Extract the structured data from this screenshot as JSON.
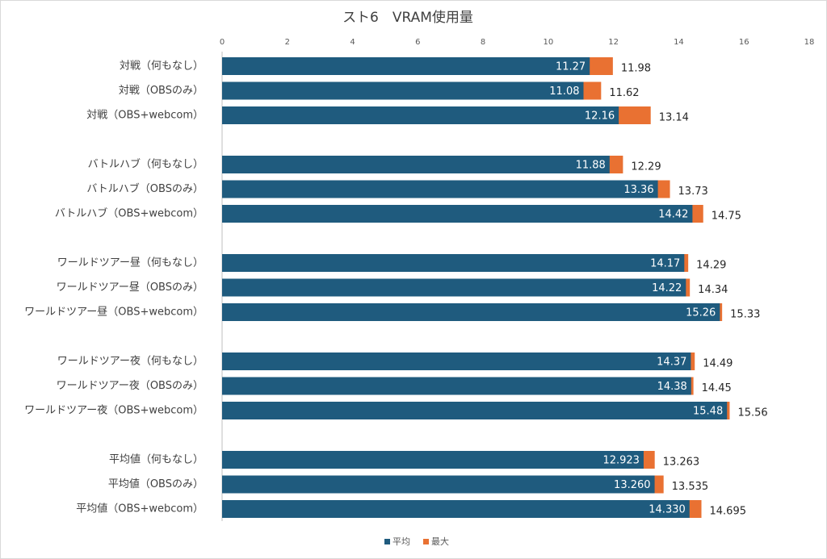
{
  "chart_data": {
    "type": "bar",
    "orientation": "horizontal",
    "title": "スト6　VRAM使用量",
    "categories": [
      "対戦（何もなし）",
      "対戦（OBSのみ）",
      "対戦（OBS+webcom）",
      "バトルハブ（何もなし）",
      "バトルハブ（OBSのみ）",
      "バトルハブ（OBS+webcom）",
      "ワールドツアー昼（何もなし）",
      "ワールドツアー昼（OBSのみ）",
      "ワールドツアー昼（OBS+webcom）",
      "ワールドツアー夜（何もなし）",
      "ワールドツアー夜（OBSのみ）",
      "ワールドツアー夜（OBS+webcom）",
      "平均値（何もなし）",
      "平均値（OBSのみ）",
      "平均値（OBS+webcom）"
    ],
    "series": [
      {
        "name": "平均",
        "color": "#1f5b7e",
        "values": [
          11.27,
          11.08,
          12.16,
          11.88,
          13.36,
          14.42,
          14.17,
          14.22,
          15.26,
          14.37,
          14.38,
          15.48,
          12.923,
          13.26,
          14.33
        ],
        "value_labels": [
          "11.27",
          "11.08",
          "12.16",
          "11.88",
          "13.36",
          "14.42",
          "14.17",
          "14.22",
          "15.26",
          "14.37",
          "14.38",
          "15.48",
          "12.923",
          "13.260",
          "14.330"
        ]
      },
      {
        "name": "最大",
        "color": "#e97132",
        "values": [
          11.98,
          11.62,
          13.14,
          12.29,
          13.73,
          14.75,
          14.29,
          14.34,
          15.33,
          14.49,
          14.45,
          15.56,
          13.263,
          13.535,
          14.695
        ]
      }
    ],
    "xlim": [
      0,
      18
    ],
    "xticks": [
      0,
      2,
      4,
      6,
      8,
      10,
      12,
      14,
      16,
      18
    ],
    "grid": false,
    "legend": "bottom"
  }
}
